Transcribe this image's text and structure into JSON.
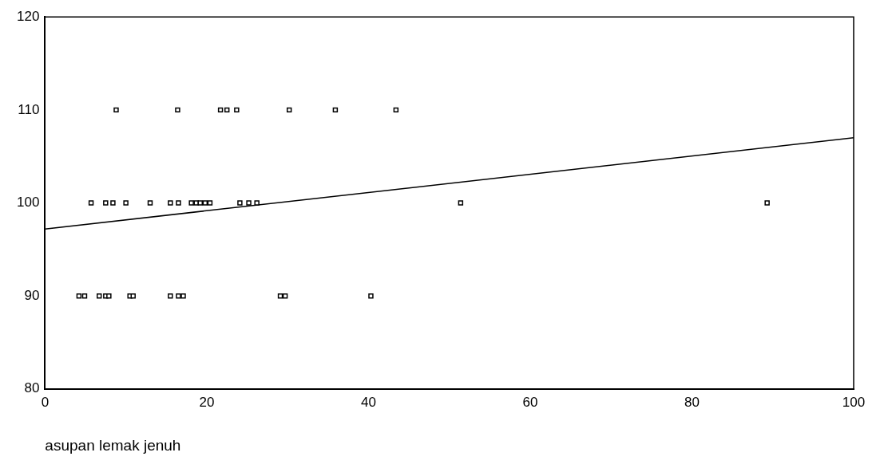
{
  "chart_data": {
    "type": "scatter",
    "xlabel": "asupan lemak jenuh",
    "xlim": [
      0,
      100
    ],
    "xticks": [
      0,
      20,
      40,
      60,
      80,
      100
    ],
    "ylim": [
      80,
      120
    ],
    "yticks": [
      80,
      90,
      100,
      110,
      120
    ],
    "grid": false,
    "legend": false,
    "marker": "square",
    "series": [
      {
        "color": "#000000",
        "x": [
          8.8,
          16.4,
          21.7,
          22.5,
          23.7,
          30.2,
          35.9,
          43.4,
          5.7,
          7.5,
          8.4,
          10,
          13,
          15.5,
          16.5,
          18.1,
          18.7,
          19.2,
          19.8,
          20.4,
          24.1,
          25.2,
          26.2,
          51.4,
          89.3,
          4.2,
          4.9,
          6.7,
          7.5,
          7.9,
          10.5,
          10.9,
          15.5,
          16.5,
          17.1,
          29.1,
          29.7,
          40.3
        ],
        "values": [
          110,
          110,
          110,
          110,
          110,
          110,
          110,
          110,
          100,
          100,
          100,
          100,
          100,
          100,
          100,
          100,
          100,
          100,
          100,
          100,
          100,
          100,
          100,
          100,
          100,
          90,
          90,
          90,
          90,
          90,
          90,
          90,
          90,
          90,
          90,
          90,
          90,
          90
        ]
      },
      {
        "type": "line",
        "color": "#000000",
        "x": [
          0,
          100
        ],
        "values": [
          97.2,
          107
        ],
        "marker": "none",
        "line_style": "solid"
      }
    ]
  }
}
